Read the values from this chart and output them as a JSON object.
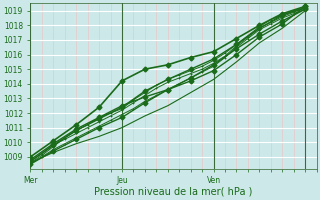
{
  "xlabel": "Pression niveau de la mer( hPa )",
  "bg_color": "#cce8e8",
  "grid_major_color": "#ffffff",
  "grid_minor_color": "#e8c8c8",
  "line_color": "#1a6b1a",
  "marker_color": "#1a6b1a",
  "tick_label_color": "#1a6b1a",
  "axis_line_color": "#4a7a4a",
  "vline_color": "#3a6a3a",
  "ylim": [
    1008.2,
    1019.5
  ],
  "yticks": [
    1009,
    1010,
    1011,
    1012,
    1013,
    1014,
    1015,
    1016,
    1017,
    1018,
    1019
  ],
  "xlim": [
    0,
    75
  ],
  "xtick_positions": [
    0,
    24,
    48,
    72
  ],
  "xtick_labels": [
    "Mer",
    "Jeu",
    "Ven",
    ""
  ],
  "vlines": [
    0,
    24,
    48,
    72
  ],
  "line1_x": [
    0,
    3,
    6,
    9,
    12,
    15,
    18,
    21,
    24,
    27,
    30,
    33,
    36,
    39,
    42,
    45,
    48,
    51,
    54,
    57,
    60,
    63,
    66,
    69,
    72
  ],
  "line1_y": [
    1008.6,
    1009.1,
    1009.7,
    1010.3,
    1010.8,
    1011.2,
    1011.7,
    1012.0,
    1012.3,
    1012.9,
    1013.4,
    1013.9,
    1014.3,
    1014.6,
    1014.9,
    1015.2,
    1015.6,
    1016.1,
    1016.7,
    1017.3,
    1017.9,
    1018.4,
    1018.7,
    1019.0,
    1019.2
  ],
  "line2_x": [
    0,
    3,
    6,
    9,
    12,
    15,
    18,
    21,
    24,
    27,
    30,
    33,
    36,
    39,
    42,
    45,
    48,
    51,
    54,
    57,
    60,
    63,
    66,
    69,
    72
  ],
  "line2_y": [
    1008.5,
    1009.0,
    1009.5,
    1009.9,
    1010.3,
    1010.7,
    1011.1,
    1011.5,
    1011.9,
    1012.3,
    1012.8,
    1013.2,
    1013.6,
    1014.0,
    1014.4,
    1014.8,
    1015.2,
    1015.8,
    1016.5,
    1017.1,
    1017.7,
    1018.1,
    1018.5,
    1018.8,
    1019.1
  ],
  "line3_x": [
    0,
    3,
    6,
    9,
    12,
    15,
    18,
    21,
    24,
    27,
    30,
    33,
    36,
    39,
    42,
    45,
    48,
    51,
    54,
    57,
    60,
    63,
    66,
    69,
    72
  ],
  "line3_y": [
    1008.7,
    1009.2,
    1009.8,
    1010.2,
    1010.6,
    1011.0,
    1011.4,
    1011.8,
    1012.2,
    1012.7,
    1013.2,
    1013.7,
    1014.1,
    1014.4,
    1014.7,
    1015.0,
    1015.4,
    1015.9,
    1016.6,
    1017.2,
    1017.8,
    1018.2,
    1018.6,
    1018.9,
    1019.2
  ],
  "line4_x": [
    0,
    6,
    12,
    18,
    24,
    30,
    36,
    42,
    48,
    54,
    60,
    66,
    72
  ],
  "line4_y": [
    1008.7,
    1009.8,
    1010.8,
    1011.6,
    1012.4,
    1013.5,
    1014.3,
    1015.0,
    1015.7,
    1016.7,
    1017.8,
    1018.7,
    1019.2
  ],
  "line5_x": [
    0,
    6,
    12,
    18,
    24,
    30,
    36,
    42,
    48,
    54,
    60,
    66,
    72
  ],
  "line5_y": [
    1008.8,
    1009.9,
    1010.9,
    1011.7,
    1012.5,
    1013.1,
    1013.6,
    1014.2,
    1014.9,
    1016.0,
    1017.2,
    1018.1,
    1019.3
  ],
  "line6_x": [
    0,
    6,
    12,
    18,
    24,
    30,
    36,
    42,
    48,
    54,
    60,
    66,
    72
  ],
  "line6_y": [
    1008.5,
    1009.4,
    1010.2,
    1011.0,
    1011.7,
    1012.7,
    1013.6,
    1014.4,
    1015.3,
    1016.4,
    1017.4,
    1018.3,
    1019.1
  ],
  "line7_x": [
    0,
    6,
    12,
    18,
    24,
    30,
    36,
    42,
    48,
    54,
    60,
    66,
    72
  ],
  "line7_y": [
    1008.9,
    1009.5,
    1010.1,
    1010.7,
    1011.3,
    1012.0,
    1012.8,
    1013.7,
    1014.5,
    1015.8,
    1017.1,
    1018.2,
    1019.4
  ],
  "upper_x": [
    0,
    6,
    12,
    18,
    24,
    30,
    36,
    42,
    48,
    54,
    60,
    66,
    72
  ],
  "upper_y": [
    1009.0,
    1010.1,
    1011.2,
    1012.4,
    1014.2,
    1015.0,
    1015.3,
    1015.8,
    1016.2,
    1017.1,
    1018.0,
    1018.8,
    1019.3
  ],
  "lower_x": [
    0,
    6,
    12,
    18,
    24,
    30,
    36,
    42,
    48,
    54,
    60,
    66,
    72
  ],
  "lower_y": [
    1008.6,
    1009.3,
    1009.9,
    1010.4,
    1011.0,
    1011.8,
    1012.5,
    1013.4,
    1014.3,
    1015.5,
    1016.8,
    1017.8,
    1019.0
  ]
}
